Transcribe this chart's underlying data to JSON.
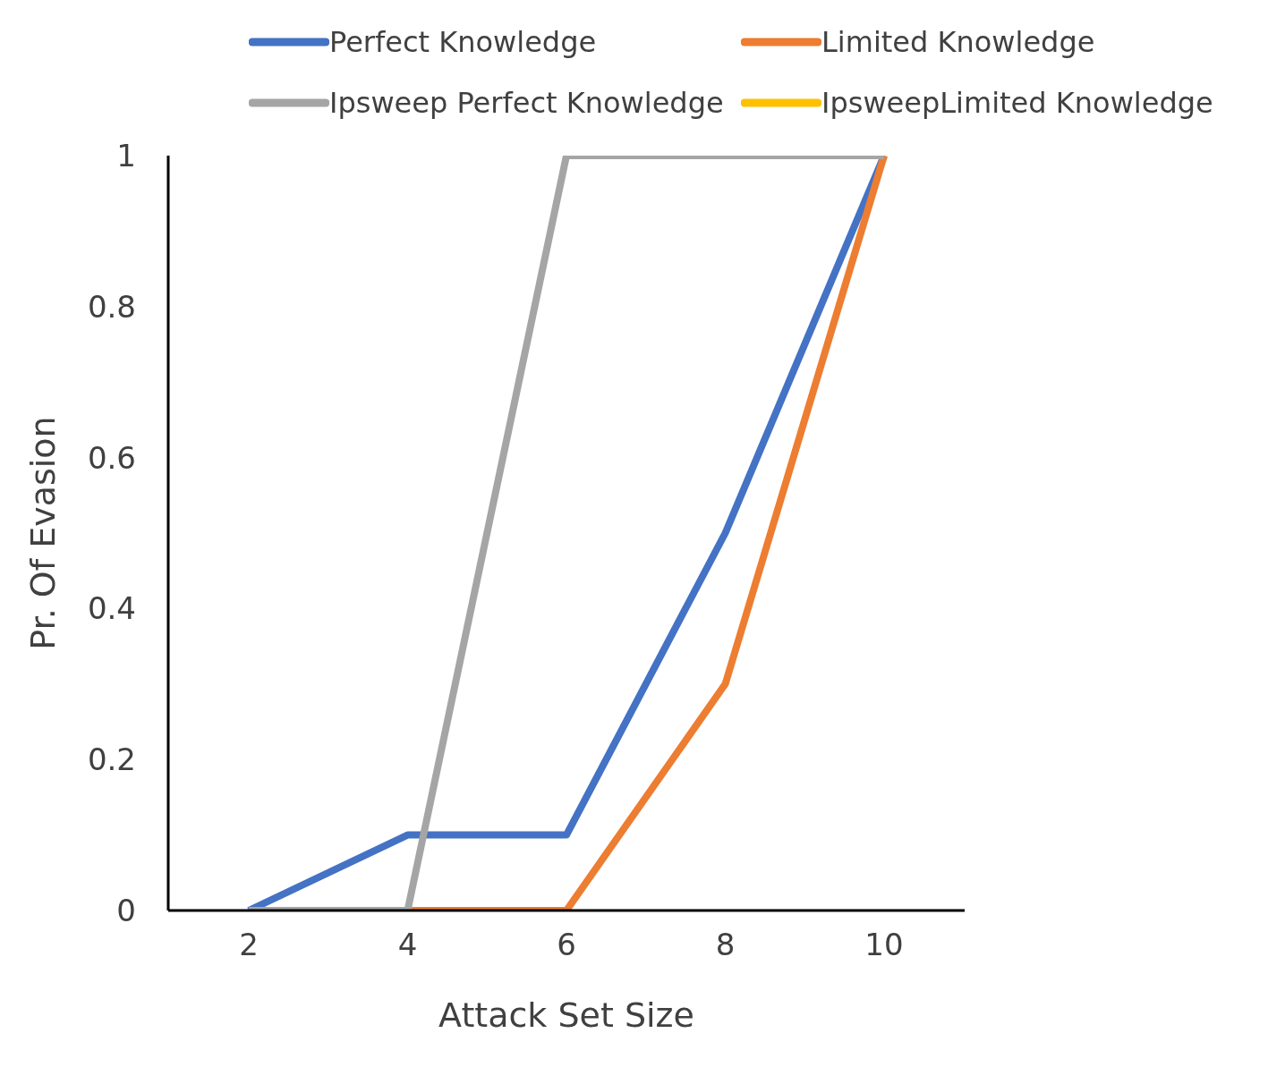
{
  "chart_data": {
    "type": "line",
    "xlabel": "Attack Set Size",
    "ylabel": "Pr. Of Evasion",
    "categories": [
      "2",
      "4",
      "6",
      "8",
      "10"
    ],
    "series": [
      {
        "name": "Perfect Knowledge",
        "color": "#4472c4",
        "values": [
          0,
          0.1,
          0.1,
          0.5,
          1
        ]
      },
      {
        "name": "Limited Knowledge",
        "color": "#ed7d31",
        "values": [
          0,
          0,
          0,
          0.3,
          1
        ]
      },
      {
        "name": "Ipsweep Perfect Knowledge",
        "color": "#a5a5a5",
        "values": [
          0,
          0,
          1,
          1,
          1
        ]
      },
      {
        "name": "IpsweepLimited Knowledge",
        "color": "#ffc000",
        "values": [
          null,
          null,
          null,
          null,
          null
        ]
      }
    ],
    "ylim": [
      0,
      1
    ],
    "yticks": [
      0,
      0.2,
      0.4,
      0.6,
      0.8,
      1
    ],
    "grid": false,
    "legend": "top",
    "marker": "none",
    "line_style": "solid"
  }
}
